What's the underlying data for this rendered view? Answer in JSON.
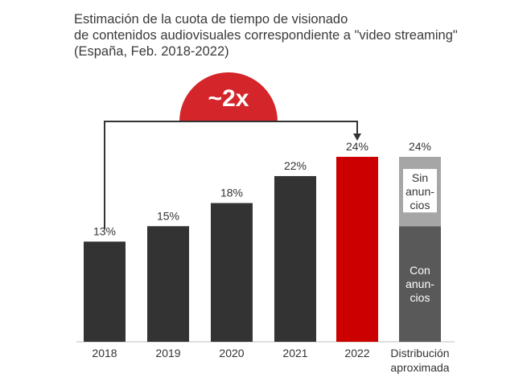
{
  "title_lines": [
    "Estimación de la cuota de tiempo de visionado",
    "de contenidos audiovisuales correspondiente a \"video streaming\"",
    "(España, Feb. 2018-2022)"
  ],
  "growth_badge": "~2x",
  "chart_data": {
    "type": "bar",
    "categories": [
      "2018",
      "2019",
      "2020",
      "2021",
      "2022"
    ],
    "values": [
      13,
      15,
      18,
      21.5,
      24
    ],
    "value_labels": [
      "13%",
      "15%",
      "18%",
      "22%",
      "24%"
    ],
    "ylim": [
      0,
      24
    ],
    "highlight_category": "2022",
    "colors": {
      "bar": "#333333",
      "highlight": "#cc0000",
      "badge": "#d4252b"
    },
    "annotation": {
      "from": "2018",
      "to": "2022",
      "label": "~2x"
    },
    "breakdown": {
      "category_lines": [
        "Distribución",
        "aproximada"
      ],
      "total_label": "24%",
      "segments": [
        {
          "label_lines": [
            "Con",
            "anun-",
            "cios"
          ],
          "value": 15,
          "color": "#595959"
        },
        {
          "label_lines": [
            "Sin",
            "anun-",
            "cios"
          ],
          "value": 9,
          "color": "#a6a6a6"
        }
      ]
    }
  }
}
